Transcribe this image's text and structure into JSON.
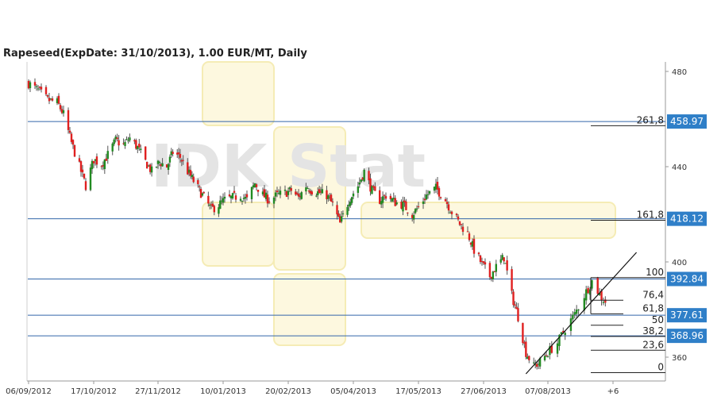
{
  "chart_data": {
    "type": "candlestick",
    "title": "Rapeseed(ExpDate: 31/10/2013), 1.00 EUR/MT, Daily",
    "watermark": "IDK Stat",
    "xlabel": "",
    "ylabel": "",
    "ylim": [
      350,
      484
    ],
    "y_ticks": [
      360,
      400,
      440,
      480
    ],
    "x_ticks": [
      "06/09/2012",
      "17/10/2012",
      "27/11/2012",
      "10/01/2013",
      "20/02/2013",
      "05/04/2013",
      "17/05/2013",
      "27/06/2013",
      "07/08/2013",
      "+6"
    ],
    "x_tick_dates": [
      "2012-09-06",
      "2012-10-17",
      "2012-11-27",
      "2013-01-10",
      "2013-02-20",
      "2013-04-05",
      "2013-05-17",
      "2013-06-27",
      "2013-08-07",
      "2013-09-10"
    ],
    "grid": false,
    "colors": {
      "up": "#228b22",
      "down": "#e02020",
      "level_line": "#3366aa",
      "badge": "#2f7fc8",
      "trend": "#111111"
    },
    "price_levels": [
      {
        "value": 458.97,
        "label": "458.97"
      },
      {
        "value": 418.12,
        "label": "418.12"
      },
      {
        "value": 392.84,
        "label": "392.84"
      },
      {
        "value": 377.61,
        "label": "377.61"
      },
      {
        "value": 368.96,
        "label": "368.96"
      }
    ],
    "fibonacci_levels": [
      {
        "label": "261,8",
        "value": 457.2
      },
      {
        "label": "161,8",
        "value": 417.5
      },
      {
        "label": "100",
        "value": 393.4
      },
      {
        "label": "76,4",
        "value": 383.9
      },
      {
        "label": "61,8",
        "value": 378.2
      },
      {
        "label": "50",
        "value": 373.4
      },
      {
        "label": "38,2",
        "value": 368.7
      },
      {
        "label": "23,6",
        "value": 362.9
      },
      {
        "label": "0",
        "value": 353.5
      }
    ],
    "trend_line": {
      "start": [
        "2013-07-24",
        353.0
      ],
      "end": [
        "2013-09-09",
        396.0
      ]
    },
    "close_path": [
      [
        "2012-09-06",
        475
      ],
      [
        "2012-09-12",
        472
      ],
      [
        "2012-09-18",
        468
      ],
      [
        "2012-09-24",
        467
      ],
      [
        "2012-09-28",
        462
      ],
      [
        "2012-10-03",
        450
      ],
      [
        "2012-10-08",
        440
      ],
      [
        "2012-10-12",
        432
      ],
      [
        "2012-10-17",
        443
      ],
      [
        "2012-10-22",
        441
      ],
      [
        "2012-10-26",
        445
      ],
      [
        "2012-10-31",
        451
      ],
      [
        "2012-11-05",
        449
      ],
      [
        "2012-11-09",
        452
      ],
      [
        "2012-11-14",
        448
      ],
      [
        "2012-11-19",
        442
      ],
      [
        "2012-11-23",
        438
      ],
      [
        "2012-11-28",
        442
      ],
      [
        "2012-12-03",
        440
      ],
      [
        "2012-12-07",
        446
      ],
      [
        "2012-12-12",
        444
      ],
      [
        "2012-12-17",
        438
      ],
      [
        "2012-12-21",
        434
      ],
      [
        "2013-01-02",
        422
      ],
      [
        "2013-01-07",
        424
      ],
      [
        "2013-01-11",
        426
      ],
      [
        "2013-01-16",
        427
      ],
      [
        "2013-01-21",
        428
      ],
      [
        "2013-01-25",
        426
      ],
      [
        "2013-01-30",
        433
      ],
      [
        "2013-02-04",
        428
      ],
      [
        "2013-02-08",
        426
      ],
      [
        "2013-02-13",
        428
      ],
      [
        "2013-02-18",
        429
      ],
      [
        "2013-02-22",
        430
      ],
      [
        "2013-02-27",
        427
      ],
      [
        "2013-03-04",
        432
      ],
      [
        "2013-03-08",
        430
      ],
      [
        "2013-03-13",
        429
      ],
      [
        "2013-03-18",
        428
      ],
      [
        "2013-03-22",
        424
      ],
      [
        "2013-03-27",
        416
      ],
      [
        "2013-04-02",
        426
      ],
      [
        "2013-04-08",
        432
      ],
      [
        "2013-04-12",
        438
      ],
      [
        "2013-04-17",
        430
      ],
      [
        "2013-04-22",
        426
      ],
      [
        "2013-04-26",
        428
      ],
      [
        "2013-05-02",
        425
      ],
      [
        "2013-05-07",
        424
      ],
      [
        "2013-05-13",
        420
      ],
      [
        "2013-05-17",
        423
      ],
      [
        "2013-05-22",
        428
      ],
      [
        "2013-05-28",
        431
      ],
      [
        "2013-06-03",
        426
      ],
      [
        "2013-06-07",
        421
      ],
      [
        "2013-06-12",
        416
      ],
      [
        "2013-06-17",
        412
      ],
      [
        "2013-06-21",
        405
      ],
      [
        "2013-06-26",
        399
      ],
      [
        "2013-07-01",
        394
      ],
      [
        "2013-07-05",
        398
      ],
      [
        "2013-07-10",
        402
      ],
      [
        "2013-07-15",
        386
      ],
      [
        "2013-07-19",
        377
      ],
      [
        "2013-07-24",
        362
      ],
      [
        "2013-07-29",
        356
      ],
      [
        "2013-08-02",
        358
      ],
      [
        "2013-08-07",
        362
      ],
      [
        "2013-08-12",
        366
      ],
      [
        "2013-08-16",
        372
      ],
      [
        "2013-08-21",
        378
      ],
      [
        "2013-08-26",
        386
      ],
      [
        "2013-08-30",
        392
      ],
      [
        "2013-09-04",
        385
      ],
      [
        "2013-09-09",
        381
      ]
    ]
  }
}
